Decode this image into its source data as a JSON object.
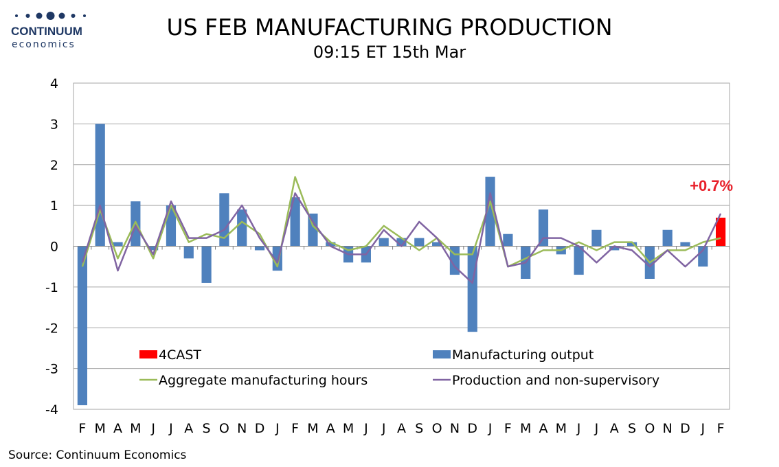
{
  "header": {
    "logo_name": "CONTINUUM",
    "logo_sub": "economics",
    "title": "US FEB MANUFACTURING PRODUCTION",
    "subtitle": "09:15 ET 15th Mar"
  },
  "source": "Source: Continuum Economics",
  "colors": {
    "output_bar": "#4f81bd",
    "forecast_bar": "#ff0000",
    "hours_line": "#9bbb59",
    "production_line": "#8064a2",
    "annotation": "#e8202a",
    "logo": "#1f3864"
  },
  "chart_data": {
    "type": "bar",
    "title": "US FEB MANUFACTURING PRODUCTION",
    "subtitle": "09:15 ET 15th Mar",
    "ylim": [
      -4,
      4
    ],
    "yticks": [
      4,
      3,
      2,
      1,
      0,
      -1,
      -2,
      -3,
      -4
    ],
    "grid": true,
    "categories": [
      "F",
      "M",
      "A",
      "M",
      "J",
      "J",
      "A",
      "S",
      "O",
      "N",
      "D",
      "J",
      "F",
      "M",
      "A",
      "M",
      "J",
      "J",
      "A",
      "S",
      "O",
      "N",
      "D",
      "J",
      "F",
      "M",
      "A",
      "M",
      "J",
      "J",
      "A",
      "S",
      "O",
      "N",
      "D",
      "J",
      "F"
    ],
    "series": [
      {
        "name": "Manufacturing output",
        "type": "bar",
        "values": [
          -3.9,
          3.0,
          0.1,
          1.1,
          -0.1,
          1.0,
          -0.3,
          -0.9,
          1.3,
          0.9,
          -0.1,
          -0.6,
          1.2,
          0.8,
          0.1,
          -0.4,
          -0.4,
          0.2,
          0.2,
          0.2,
          0.1,
          -0.7,
          -2.1,
          1.7,
          0.3,
          -0.8,
          0.9,
          -0.2,
          -0.7,
          0.4,
          -0.1,
          0.1,
          -0.8,
          0.4,
          0.1,
          -0.5,
          null
        ]
      },
      {
        "name": "4CAST",
        "type": "bar",
        "values": [
          null,
          null,
          null,
          null,
          null,
          null,
          null,
          null,
          null,
          null,
          null,
          null,
          null,
          null,
          null,
          null,
          null,
          null,
          null,
          null,
          null,
          null,
          null,
          null,
          null,
          null,
          null,
          null,
          null,
          null,
          null,
          null,
          null,
          null,
          null,
          null,
          0.7
        ]
      },
      {
        "name": "Aggregate manufacturing hours",
        "type": "line",
        "values": [
          -0.5,
          0.9,
          -0.3,
          0.6,
          -0.3,
          1.0,
          0.1,
          0.3,
          0.2,
          0.6,
          0.3,
          -0.5,
          1.7,
          0.5,
          0.1,
          -0.1,
          0.0,
          0.5,
          0.2,
          -0.1,
          0.2,
          -0.2,
          -0.2,
          1.1,
          -0.5,
          -0.3,
          -0.1,
          -0.1,
          0.1,
          -0.1,
          0.1,
          0.1,
          -0.4,
          -0.1,
          -0.1,
          0.1,
          0.2
        ]
      },
      {
        "name": "Production and non-supervisory",
        "type": "line",
        "values": [
          -0.4,
          1.0,
          -0.6,
          0.5,
          -0.2,
          1.1,
          0.2,
          0.2,
          0.4,
          1.0,
          0.2,
          -0.4,
          1.3,
          0.6,
          0.0,
          -0.2,
          -0.2,
          0.4,
          0.0,
          0.6,
          0.2,
          -0.5,
          -0.9,
          1.3,
          -0.5,
          -0.4,
          0.2,
          0.2,
          0.0,
          -0.4,
          0.0,
          -0.1,
          -0.5,
          -0.1,
          -0.5,
          -0.1,
          0.8
        ]
      }
    ],
    "legend": [
      {
        "name": "4CAST",
        "swatch": "bar",
        "color": "#ff0000"
      },
      {
        "name": "Manufacturing output",
        "swatch": "bar",
        "color": "#4f81bd"
      },
      {
        "name": "Aggregate manufacturing hours",
        "swatch": "line",
        "color": "#9bbb59"
      },
      {
        "name": "Production and non-supervisory",
        "swatch": "line",
        "color": "#8064a2"
      }
    ],
    "legend_position": "bottom",
    "annotation": {
      "text": "+0.7%",
      "index": 36,
      "value": 0.7
    }
  }
}
